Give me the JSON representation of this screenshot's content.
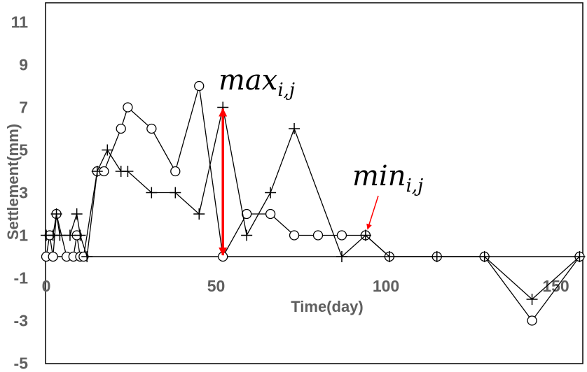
{
  "chart_data": {
    "type": "line",
    "title": "",
    "xlabel": "Time(day)",
    "ylabel": "Settlement(mm)",
    "xlim": [
      0,
      160
    ],
    "ylim": [
      -5,
      12
    ],
    "xticks": [
      0,
      50,
      100,
      150
    ],
    "yticks": [
      -5,
      -3,
      -1,
      1,
      3,
      5,
      7,
      9,
      11
    ],
    "grid": false,
    "series": [
      {
        "marker": "circle",
        "color": "#000000",
        "points": [
          [
            0,
            0
          ],
          [
            1,
            1
          ],
          [
            2,
            0
          ],
          [
            3,
            2
          ],
          [
            6,
            0
          ],
          [
            8,
            0
          ],
          [
            9,
            1
          ],
          [
            10,
            0
          ],
          [
            11,
            0
          ],
          [
            15,
            4
          ],
          [
            17,
            4
          ],
          [
            22,
            6
          ],
          [
            24,
            7
          ],
          [
            31,
            6
          ],
          [
            38,
            4
          ],
          [
            45,
            8
          ],
          [
            52,
            0
          ],
          [
            59,
            2
          ],
          [
            66,
            2
          ],
          [
            73,
            1
          ],
          [
            80,
            1
          ],
          [
            87,
            1
          ],
          [
            94,
            1
          ],
          [
            101,
            0
          ],
          [
            115,
            0
          ],
          [
            129,
            0
          ],
          [
            143,
            -3
          ],
          [
            157,
            0
          ]
        ]
      },
      {
        "marker": "plus",
        "color": "#000000",
        "points": [
          [
            0,
            1
          ],
          [
            2,
            1
          ],
          [
            3,
            2
          ],
          [
            4,
            1
          ],
          [
            7,
            1
          ],
          [
            9,
            2
          ],
          [
            10,
            1
          ],
          [
            12,
            0
          ],
          [
            15,
            4
          ],
          [
            18,
            5
          ],
          [
            22,
            4
          ],
          [
            24,
            4
          ],
          [
            31,
            3
          ],
          [
            38,
            3
          ],
          [
            45,
            2
          ],
          [
            52,
            7
          ],
          [
            59,
            1
          ],
          [
            66,
            3
          ],
          [
            73,
            6
          ],
          [
            87,
            0
          ],
          [
            94,
            1
          ],
          [
            101,
            0
          ],
          [
            115,
            0
          ],
          [
            129,
            0
          ],
          [
            143,
            -2
          ],
          [
            157,
            0
          ]
        ]
      }
    ],
    "annotations": [
      {
        "base": "max",
        "sub": "i,j",
        "arrow": "double",
        "color": "#ff0000",
        "x": 52,
        "y_from": 7,
        "y_to": 0
      },
      {
        "base": "min",
        "sub": "i,j",
        "arrow": "single",
        "color": "#ff0000",
        "target": [
          94,
          1
        ]
      }
    ]
  }
}
